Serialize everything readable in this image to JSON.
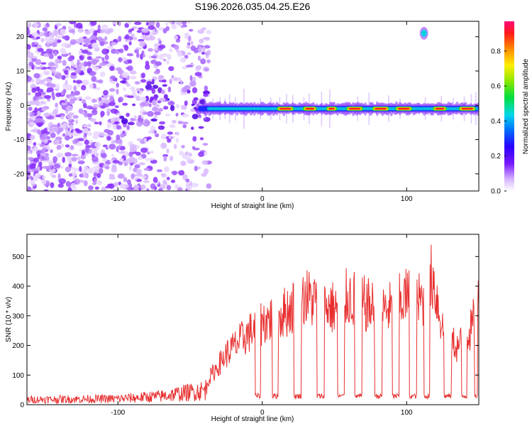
{
  "title": "S196.2026.035.04.25.E26",
  "chart_data": [
    {
      "type": "heatmap",
      "title": "",
      "xlabel": "Height of straight line (km)",
      "ylabel": "Frequency (Hz)",
      "xlim": [
        -163,
        150
      ],
      "ylim": [
        -25,
        24.5
      ],
      "xticks": [
        -100,
        0,
        100
      ],
      "yticks": [
        -20,
        -10,
        0,
        10,
        20
      ],
      "colorbar": {
        "label": "Normalized spectral amplitude",
        "range": [
          0,
          0.97
        ],
        "ticks": [
          0.0,
          0.2,
          0.4,
          0.6,
          0.8
        ]
      },
      "signal": {
        "frequency_hz": -1,
        "onset_km": -45,
        "strong_segments_km": [
          [
            10,
            22
          ],
          [
            28,
            38
          ],
          [
            44,
            52
          ],
          [
            58,
            70
          ],
          [
            76,
            88
          ],
          [
            92,
            104
          ],
          [
            118,
            128
          ],
          [
            136,
            148
          ]
        ],
        "isolated_blob": {
          "x_km": 112,
          "freq_hz": 21
        }
      }
    },
    {
      "type": "line",
      "title": "",
      "xlabel": "Height of straight line (km)",
      "ylabel": "SNR (10 * v/v)",
      "xlim": [
        -163,
        150
      ],
      "ylim": [
        0,
        575
      ],
      "xticks": [
        -100,
        0,
        100
      ],
      "yticks": [
        0,
        100,
        200,
        300,
        400,
        500
      ],
      "color": "#e83030",
      "noise_floor": 20,
      "envelope": [
        {
          "x": -163,
          "y": 30
        },
        {
          "x": -100,
          "y": 35
        },
        {
          "x": -70,
          "y": 50
        },
        {
          "x": -40,
          "y": 85
        },
        {
          "x": -25,
          "y": 220
        },
        {
          "x": -15,
          "y": 280
        },
        {
          "x": 0,
          "y": 360
        },
        {
          "x": 10,
          "y": 380
        },
        {
          "x": 20,
          "y": 420
        },
        {
          "x": 30,
          "y": 470
        },
        {
          "x": 40,
          "y": 440
        },
        {
          "x": 50,
          "y": 420
        },
        {
          "x": 60,
          "y": 470
        },
        {
          "x": 70,
          "y": 440
        },
        {
          "x": 80,
          "y": 410
        },
        {
          "x": 90,
          "y": 420
        },
        {
          "x": 100,
          "y": 470
        },
        {
          "x": 110,
          "y": 450
        },
        {
          "x": 118,
          "y": 560
        },
        {
          "x": 125,
          "y": 330
        },
        {
          "x": 135,
          "y": 250
        },
        {
          "x": 145,
          "y": 330
        },
        {
          "x": 150,
          "y": 450
        }
      ],
      "dropouts_km": [
        [
          -5,
          -1
        ],
        [
          7,
          11
        ],
        [
          22,
          27
        ],
        [
          38,
          43
        ],
        [
          52,
          57
        ],
        [
          64,
          69
        ],
        [
          78,
          83
        ],
        [
          90,
          95
        ],
        [
          102,
          107
        ],
        [
          112,
          116
        ],
        [
          126,
          131
        ],
        [
          138,
          142
        ],
        [
          147,
          149
        ]
      ]
    }
  ]
}
